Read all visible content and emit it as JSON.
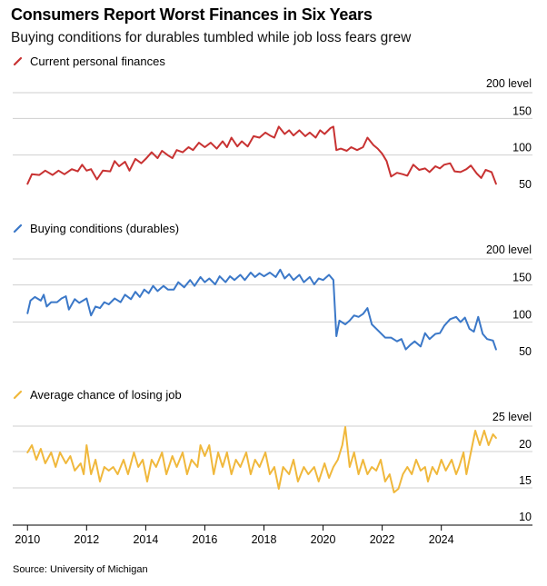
{
  "title": "Consumers Report Worst Finances in Six Years",
  "subtitle": "Buying conditions for durables tumbled while job loss fears grew",
  "source": "Source: University of Michigan",
  "chart_data": [
    {
      "type": "line",
      "legend": "Current personal finances",
      "color": "#c83232",
      "unit_label": "200 level",
      "yticks": [
        50,
        100,
        150
      ],
      "ylim": [
        50,
        200
      ],
      "points": [
        [
          2010.0,
          62
        ],
        [
          2010.15,
          75
        ],
        [
          2010.4,
          74
        ],
        [
          2010.6,
          80
        ],
        [
          2010.85,
          74
        ],
        [
          2011.05,
          80
        ],
        [
          2011.25,
          75
        ],
        [
          2011.5,
          82
        ],
        [
          2011.7,
          79
        ],
        [
          2011.85,
          88
        ],
        [
          2012.0,
          80
        ],
        [
          2012.15,
          82
        ],
        [
          2012.35,
          68
        ],
        [
          2012.55,
          80
        ],
        [
          2012.8,
          79
        ],
        [
          2012.95,
          93
        ],
        [
          2013.1,
          86
        ],
        [
          2013.3,
          92
        ],
        [
          2013.45,
          80
        ],
        [
          2013.65,
          96
        ],
        [
          2013.85,
          90
        ],
        [
          2014.0,
          96
        ],
        [
          2014.2,
          105
        ],
        [
          2014.4,
          97
        ],
        [
          2014.55,
          107
        ],
        [
          2014.75,
          101
        ],
        [
          2014.9,
          97
        ],
        [
          2015.05,
          108
        ],
        [
          2015.25,
          105
        ],
        [
          2015.45,
          112
        ],
        [
          2015.6,
          108
        ],
        [
          2015.8,
          118
        ],
        [
          2016.0,
          112
        ],
        [
          2016.2,
          118
        ],
        [
          2016.4,
          110
        ],
        [
          2016.6,
          120
        ],
        [
          2016.75,
          112
        ],
        [
          2016.9,
          125
        ],
        [
          2017.1,
          113
        ],
        [
          2017.25,
          120
        ],
        [
          2017.45,
          113
        ],
        [
          2017.65,
          127
        ],
        [
          2017.85,
          125
        ],
        [
          2018.05,
          132
        ],
        [
          2018.2,
          128
        ],
        [
          2018.35,
          125
        ],
        [
          2018.5,
          140
        ],
        [
          2018.7,
          130
        ],
        [
          2018.85,
          135
        ],
        [
          2019.0,
          128
        ],
        [
          2019.2,
          135
        ],
        [
          2019.4,
          127
        ],
        [
          2019.55,
          132
        ],
        [
          2019.75,
          125
        ],
        [
          2019.9,
          135
        ],
        [
          2020.05,
          130
        ],
        [
          2020.25,
          138
        ],
        [
          2020.35,
          140
        ],
        [
          2020.45,
          108
        ],
        [
          2020.6,
          110
        ],
        [
          2020.8,
          107
        ],
        [
          2020.95,
          112
        ],
        [
          2021.15,
          108
        ],
        [
          2021.35,
          112
        ],
        [
          2021.5,
          125
        ],
        [
          2021.7,
          115
        ],
        [
          2021.85,
          110
        ],
        [
          2022.0,
          103
        ],
        [
          2022.15,
          93
        ],
        [
          2022.3,
          72
        ],
        [
          2022.5,
          77
        ],
        [
          2022.7,
          75
        ],
        [
          2022.85,
          73
        ],
        [
          2023.05,
          88
        ],
        [
          2023.25,
          81
        ],
        [
          2023.45,
          83
        ],
        [
          2023.6,
          78
        ],
        [
          2023.8,
          86
        ],
        [
          2023.95,
          83
        ],
        [
          2024.1,
          88
        ],
        [
          2024.3,
          90
        ],
        [
          2024.45,
          79
        ],
        [
          2024.65,
          78
        ],
        [
          2024.85,
          82
        ],
        [
          2025.0,
          87
        ],
        [
          2025.2,
          76
        ],
        [
          2025.35,
          70
        ],
        [
          2025.5,
          81
        ],
        [
          2025.7,
          78
        ],
        [
          2025.85,
          62
        ]
      ]
    },
    {
      "type": "line",
      "legend": "Buying conditions (durables)",
      "color": "#3b78c8",
      "unit_label": "200 level",
      "yticks": [
        50,
        100,
        150
      ],
      "ylim": [
        50,
        200
      ],
      "points": [
        [
          2010.0,
          113
        ],
        [
          2010.1,
          130
        ],
        [
          2010.25,
          135
        ],
        [
          2010.45,
          130
        ],
        [
          2010.55,
          138
        ],
        [
          2010.65,
          122
        ],
        [
          2010.8,
          128
        ],
        [
          2011.0,
          128
        ],
        [
          2011.15,
          133
        ],
        [
          2011.3,
          136
        ],
        [
          2011.4,
          118
        ],
        [
          2011.6,
          132
        ],
        [
          2011.75,
          127
        ],
        [
          2012.0,
          133
        ],
        [
          2012.15,
          110
        ],
        [
          2012.3,
          122
        ],
        [
          2012.45,
          120
        ],
        [
          2012.6,
          128
        ],
        [
          2012.75,
          125
        ],
        [
          2012.95,
          133
        ],
        [
          2013.15,
          128
        ],
        [
          2013.3,
          138
        ],
        [
          2013.5,
          132
        ],
        [
          2013.65,
          142
        ],
        [
          2013.8,
          135
        ],
        [
          2013.95,
          145
        ],
        [
          2014.1,
          140
        ],
        [
          2014.25,
          150
        ],
        [
          2014.4,
          143
        ],
        [
          2014.6,
          150
        ],
        [
          2014.75,
          145
        ],
        [
          2014.95,
          145
        ],
        [
          2015.1,
          155
        ],
        [
          2015.3,
          148
        ],
        [
          2015.5,
          158
        ],
        [
          2015.65,
          150
        ],
        [
          2015.85,
          162
        ],
        [
          2016.0,
          155
        ],
        [
          2016.15,
          160
        ],
        [
          2016.35,
          152
        ],
        [
          2016.5,
          163
        ],
        [
          2016.7,
          155
        ],
        [
          2016.85,
          163
        ],
        [
          2017.0,
          158
        ],
        [
          2017.2,
          165
        ],
        [
          2017.35,
          158
        ],
        [
          2017.55,
          168
        ],
        [
          2017.7,
          162
        ],
        [
          2017.85,
          167
        ],
        [
          2018.0,
          163
        ],
        [
          2018.2,
          168
        ],
        [
          2018.4,
          162
        ],
        [
          2018.55,
          172
        ],
        [
          2018.7,
          160
        ],
        [
          2018.85,
          166
        ],
        [
          2019.0,
          158
        ],
        [
          2019.2,
          165
        ],
        [
          2019.35,
          155
        ],
        [
          2019.55,
          162
        ],
        [
          2019.7,
          152
        ],
        [
          2019.85,
          160
        ],
        [
          2020.0,
          158
        ],
        [
          2020.2,
          165
        ],
        [
          2020.35,
          158
        ],
        [
          2020.45,
          82
        ],
        [
          2020.55,
          103
        ],
        [
          2020.75,
          98
        ],
        [
          2020.9,
          103
        ],
        [
          2021.05,
          110
        ],
        [
          2021.2,
          108
        ],
        [
          2021.35,
          112
        ],
        [
          2021.5,
          120
        ],
        [
          2021.65,
          98
        ],
        [
          2021.8,
          92
        ],
        [
          2021.95,
          86
        ],
        [
          2022.1,
          80
        ],
        [
          2022.3,
          80
        ],
        [
          2022.5,
          75
        ],
        [
          2022.65,
          78
        ],
        [
          2022.8,
          64
        ],
        [
          2022.95,
          70
        ],
        [
          2023.1,
          75
        ],
        [
          2023.3,
          68
        ],
        [
          2023.45,
          86
        ],
        [
          2023.6,
          78
        ],
        [
          2023.8,
          85
        ],
        [
          2023.95,
          86
        ],
        [
          2024.1,
          96
        ],
        [
          2024.3,
          105
        ],
        [
          2024.5,
          108
        ],
        [
          2024.65,
          101
        ],
        [
          2024.8,
          107
        ],
        [
          2024.95,
          92
        ],
        [
          2025.1,
          88
        ],
        [
          2025.25,
          108
        ],
        [
          2025.4,
          85
        ],
        [
          2025.55,
          78
        ],
        [
          2025.75,
          76
        ],
        [
          2025.85,
          64
        ]
      ]
    },
    {
      "type": "line",
      "legend": "Average chance of losing job",
      "color": "#f0b83c",
      "unit_label": "25 level",
      "yticks": [
        10,
        15,
        20
      ],
      "ylim": [
        10,
        25
      ],
      "points": [
        [
          2010.0,
          20
        ],
        [
          2010.15,
          21
        ],
        [
          2010.3,
          19
        ],
        [
          2010.45,
          20.5
        ],
        [
          2010.6,
          18.5
        ],
        [
          2010.8,
          20
        ],
        [
          2010.95,
          18
        ],
        [
          2011.1,
          20
        ],
        [
          2011.3,
          18.5
        ],
        [
          2011.45,
          19.5
        ],
        [
          2011.6,
          17.5
        ],
        [
          2011.8,
          18.5
        ],
        [
          2011.9,
          17
        ],
        [
          2012.0,
          21
        ],
        [
          2012.15,
          17
        ],
        [
          2012.3,
          19
        ],
        [
          2012.45,
          16
        ],
        [
          2012.6,
          18
        ],
        [
          2012.75,
          17.5
        ],
        [
          2012.9,
          18
        ],
        [
          2013.05,
          17
        ],
        [
          2013.25,
          19
        ],
        [
          2013.4,
          17
        ],
        [
          2013.6,
          20
        ],
        [
          2013.75,
          18
        ],
        [
          2013.9,
          19
        ],
        [
          2014.05,
          16
        ],
        [
          2014.2,
          19
        ],
        [
          2014.35,
          18
        ],
        [
          2014.55,
          20
        ],
        [
          2014.7,
          17
        ],
        [
          2014.9,
          19.5
        ],
        [
          2015.05,
          18
        ],
        [
          2015.25,
          20
        ],
        [
          2015.4,
          17
        ],
        [
          2015.55,
          19
        ],
        [
          2015.75,
          18
        ],
        [
          2015.85,
          21
        ],
        [
          2016.0,
          19.5
        ],
        [
          2016.15,
          21
        ],
        [
          2016.3,
          17
        ],
        [
          2016.45,
          20
        ],
        [
          2016.6,
          18
        ],
        [
          2016.75,
          20
        ],
        [
          2016.9,
          17
        ],
        [
          2017.05,
          19
        ],
        [
          2017.2,
          18
        ],
        [
          2017.4,
          20
        ],
        [
          2017.55,
          17
        ],
        [
          2017.7,
          19
        ],
        [
          2017.85,
          18
        ],
        [
          2018.05,
          20
        ],
        [
          2018.2,
          17
        ],
        [
          2018.35,
          18
        ],
        [
          2018.5,
          15
        ],
        [
          2018.65,
          18
        ],
        [
          2018.85,
          17
        ],
        [
          2019.0,
          19
        ],
        [
          2019.15,
          16
        ],
        [
          2019.35,
          18
        ],
        [
          2019.5,
          17
        ],
        [
          2019.7,
          18
        ],
        [
          2019.85,
          16
        ],
        [
          2020.05,
          18.5
        ],
        [
          2020.2,
          16.5
        ],
        [
          2020.35,
          18
        ],
        [
          2020.5,
          19
        ],
        [
          2020.65,
          21
        ],
        [
          2020.75,
          23.5
        ],
        [
          2020.9,
          18
        ],
        [
          2021.05,
          20
        ],
        [
          2021.2,
          17
        ],
        [
          2021.35,
          19
        ],
        [
          2021.5,
          17
        ],
        [
          2021.65,
          18
        ],
        [
          2021.8,
          17.5
        ],
        [
          2021.95,
          19
        ],
        [
          2022.1,
          16
        ],
        [
          2022.25,
          17
        ],
        [
          2022.4,
          14.5
        ],
        [
          2022.55,
          15
        ],
        [
          2022.7,
          17
        ],
        [
          2022.85,
          18
        ],
        [
          2023.0,
          17
        ],
        [
          2023.15,
          19
        ],
        [
          2023.3,
          17.5
        ],
        [
          2023.45,
          18
        ],
        [
          2023.55,
          16
        ],
        [
          2023.7,
          18
        ],
        [
          2023.85,
          17
        ],
        [
          2024.0,
          19
        ],
        [
          2024.15,
          17.5
        ],
        [
          2024.35,
          19
        ],
        [
          2024.5,
          17
        ],
        [
          2024.6,
          18
        ],
        [
          2024.75,
          20
        ],
        [
          2024.85,
          17
        ],
        [
          2025.0,
          20
        ],
        [
          2025.15,
          23
        ],
        [
          2025.3,
          21
        ],
        [
          2025.45,
          23
        ],
        [
          2025.6,
          21
        ],
        [
          2025.75,
          22.5
        ],
        [
          2025.85,
          22
        ]
      ]
    }
  ],
  "x_axis": {
    "ticks": [
      "2010",
      "2012",
      "2014",
      "2016",
      "2018",
      "2020",
      "2022",
      "2024"
    ],
    "tick_values": [
      2010,
      2012,
      2014,
      2016,
      2018,
      2020,
      2022,
      2024
    ],
    "range": [
      2009.9,
      2026.1
    ]
  }
}
